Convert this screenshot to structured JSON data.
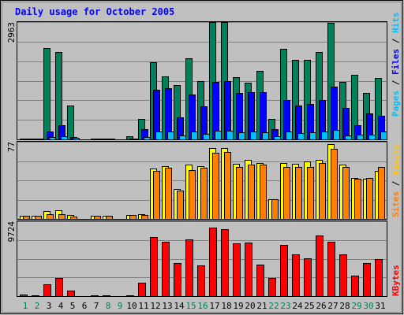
{
  "title": "Daily usage for October 2005",
  "colors": {
    "background": "#C0C0C0",
    "grid": "#808080",
    "title": "#0000FF",
    "hits": "#00805C",
    "hits_label": "#00C0FF",
    "files": "#0000FF",
    "pages": "#00C0FF",
    "visits": "#FFFF00",
    "visits_label": "#FFC000",
    "sites": "#FF8000",
    "kbytes": "#FF0000",
    "weekday": "#000000",
    "weekend": "#00805C"
  },
  "chart_data": [
    {
      "type": "bar",
      "title": "Daily usage for October 2005",
      "max_label": "2963",
      "ylim": [
        0,
        2963
      ],
      "legend": [
        {
          "name": "Pages",
          "color": "#00C0FF"
        },
        {
          "name": "Files",
          "color": "#0000FF"
        },
        {
          "name": "Hits",
          "color": "#00805C"
        }
      ],
      "categories": [
        1,
        2,
        3,
        4,
        5,
        6,
        7,
        8,
        9,
        10,
        11,
        12,
        13,
        14,
        15,
        16,
        17,
        18,
        19,
        20,
        21,
        22,
        23,
        24,
        25,
        26,
        27,
        28,
        29,
        30,
        31
      ],
      "series": [
        {
          "name": "Hits",
          "values": [
            20,
            10,
            2300,
            2200,
            850,
            0,
            10,
            10,
            0,
            80,
            520,
            1950,
            1600,
            1380,
            2050,
            1480,
            2960,
            2960,
            1580,
            1440,
            1740,
            520,
            2280,
            2000,
            2000,
            2200,
            2950,
            1460,
            1640,
            1180,
            1560
          ]
        },
        {
          "name": "Files",
          "values": [
            10,
            5,
            200,
            350,
            60,
            0,
            5,
            5,
            0,
            20,
            250,
            1250,
            1300,
            560,
            1130,
            830,
            1450,
            1480,
            1170,
            1190,
            1200,
            250,
            1000,
            860,
            900,
            1000,
            1340,
            800,
            360,
            650,
            600
          ]
        },
        {
          "name": "Pages",
          "values": [
            5,
            2,
            50,
            80,
            30,
            0,
            2,
            2,
            0,
            5,
            50,
            200,
            200,
            100,
            200,
            130,
            220,
            210,
            180,
            200,
            180,
            80,
            200,
            150,
            170,
            200,
            240,
            100,
            120,
            110,
            200
          ]
        }
      ]
    },
    {
      "type": "bar",
      "max_label": "77",
      "ylim": [
        0,
        77
      ],
      "legend": [
        {
          "name": "Sites",
          "color": "#FF8000"
        },
        {
          "name": "Visits",
          "color": "#FFFF00"
        }
      ],
      "categories": [
        1,
        2,
        3,
        4,
        5,
        6,
        7,
        8,
        9,
        10,
        11,
        12,
        13,
        14,
        15,
        16,
        17,
        18,
        19,
        20,
        21,
        22,
        23,
        24,
        25,
        26,
        27,
        28,
        29,
        30,
        31
      ],
      "series": [
        {
          "name": "Visits",
          "values": [
            3,
            3,
            8,
            9,
            4,
            0,
            3,
            3,
            0,
            4,
            5,
            50,
            53,
            30,
            54,
            53,
            71,
            71,
            55,
            59,
            56,
            20,
            56,
            55,
            57,
            59,
            75,
            54,
            41,
            40,
            48
          ]
        },
        {
          "name": "Sites",
          "values": [
            3,
            3,
            5,
            5,
            2,
            0,
            3,
            3,
            0,
            4,
            4,
            48,
            51,
            28,
            49,
            51,
            66,
            67,
            52,
            54,
            54,
            20,
            52,
            52,
            52,
            56,
            70,
            52,
            40,
            41,
            52
          ]
        }
      ]
    },
    {
      "type": "bar",
      "max_label": "9724",
      "ylim": [
        0,
        9724
      ],
      "legend": [
        {
          "name": "KBytes",
          "color": "#FF0000"
        }
      ],
      "categories": [
        1,
        2,
        3,
        4,
        5,
        6,
        7,
        8,
        9,
        10,
        11,
        12,
        13,
        14,
        15,
        16,
        17,
        18,
        19,
        20,
        21,
        22,
        23,
        24,
        25,
        26,
        27,
        28,
        29,
        30,
        31
      ],
      "series": [
        {
          "name": "KBytes",
          "values": [
            200,
            150,
            1500,
            2350,
            700,
            0,
            50,
            50,
            0,
            100,
            1700,
            7650,
            7100,
            4300,
            7400,
            3950,
            8900,
            8650,
            6900,
            7000,
            4050,
            2400,
            6700,
            5400,
            4900,
            7900,
            7100,
            5400,
            2700,
            4300,
            4800
          ]
        }
      ]
    }
  ],
  "x_labels": [
    "1",
    "2",
    "3",
    "4",
    "5",
    "6",
    "7",
    "8",
    "9",
    "10",
    "11",
    "12",
    "13",
    "14",
    "15",
    "16",
    "17",
    "18",
    "19",
    "20",
    "21",
    "22",
    "23",
    "24",
    "25",
    "26",
    "27",
    "28",
    "29",
    "30",
    "31"
  ],
  "weekend_days": [
    1,
    2,
    8,
    9,
    15,
    16,
    22,
    23,
    29,
    30
  ]
}
